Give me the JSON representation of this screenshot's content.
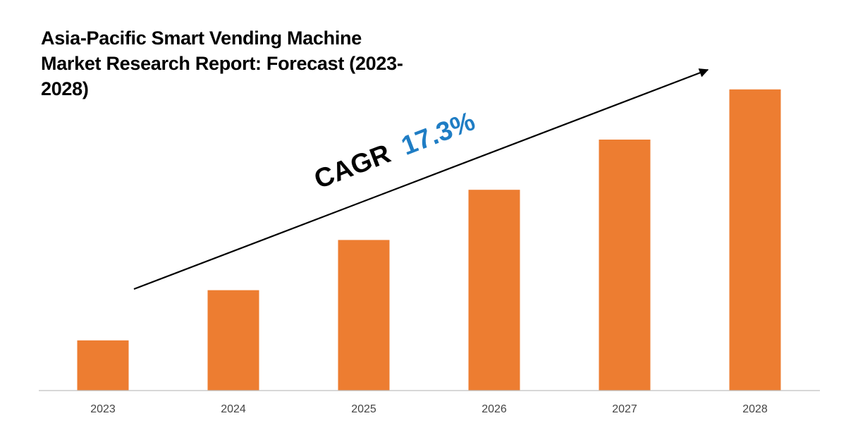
{
  "chart_data": {
    "type": "bar",
    "title": "Asia-Pacific Smart Vending Machine Market Research Report: Forecast (2023-2028)",
    "categories": [
      "2023",
      "2024",
      "2025",
      "2026",
      "2027",
      "2028"
    ],
    "values": [
      1.0,
      2.0,
      3.0,
      4.0,
      5.0,
      6.0
    ],
    "ylim": [
      0,
      6.2
    ],
    "xlabel": "",
    "ylabel": "",
    "grid": false,
    "legend": "none",
    "annotation": {
      "prefix": "CAGR",
      "value": "17.3%"
    }
  },
  "colors": {
    "bar": "#ED7D31",
    "cagr_prefix": "#000000",
    "cagr_value": "#1F7DC4",
    "axis": "#BFBFBF",
    "arrow": "#000000"
  },
  "icons": {
    "trend": "trend-arrow-icon"
  }
}
